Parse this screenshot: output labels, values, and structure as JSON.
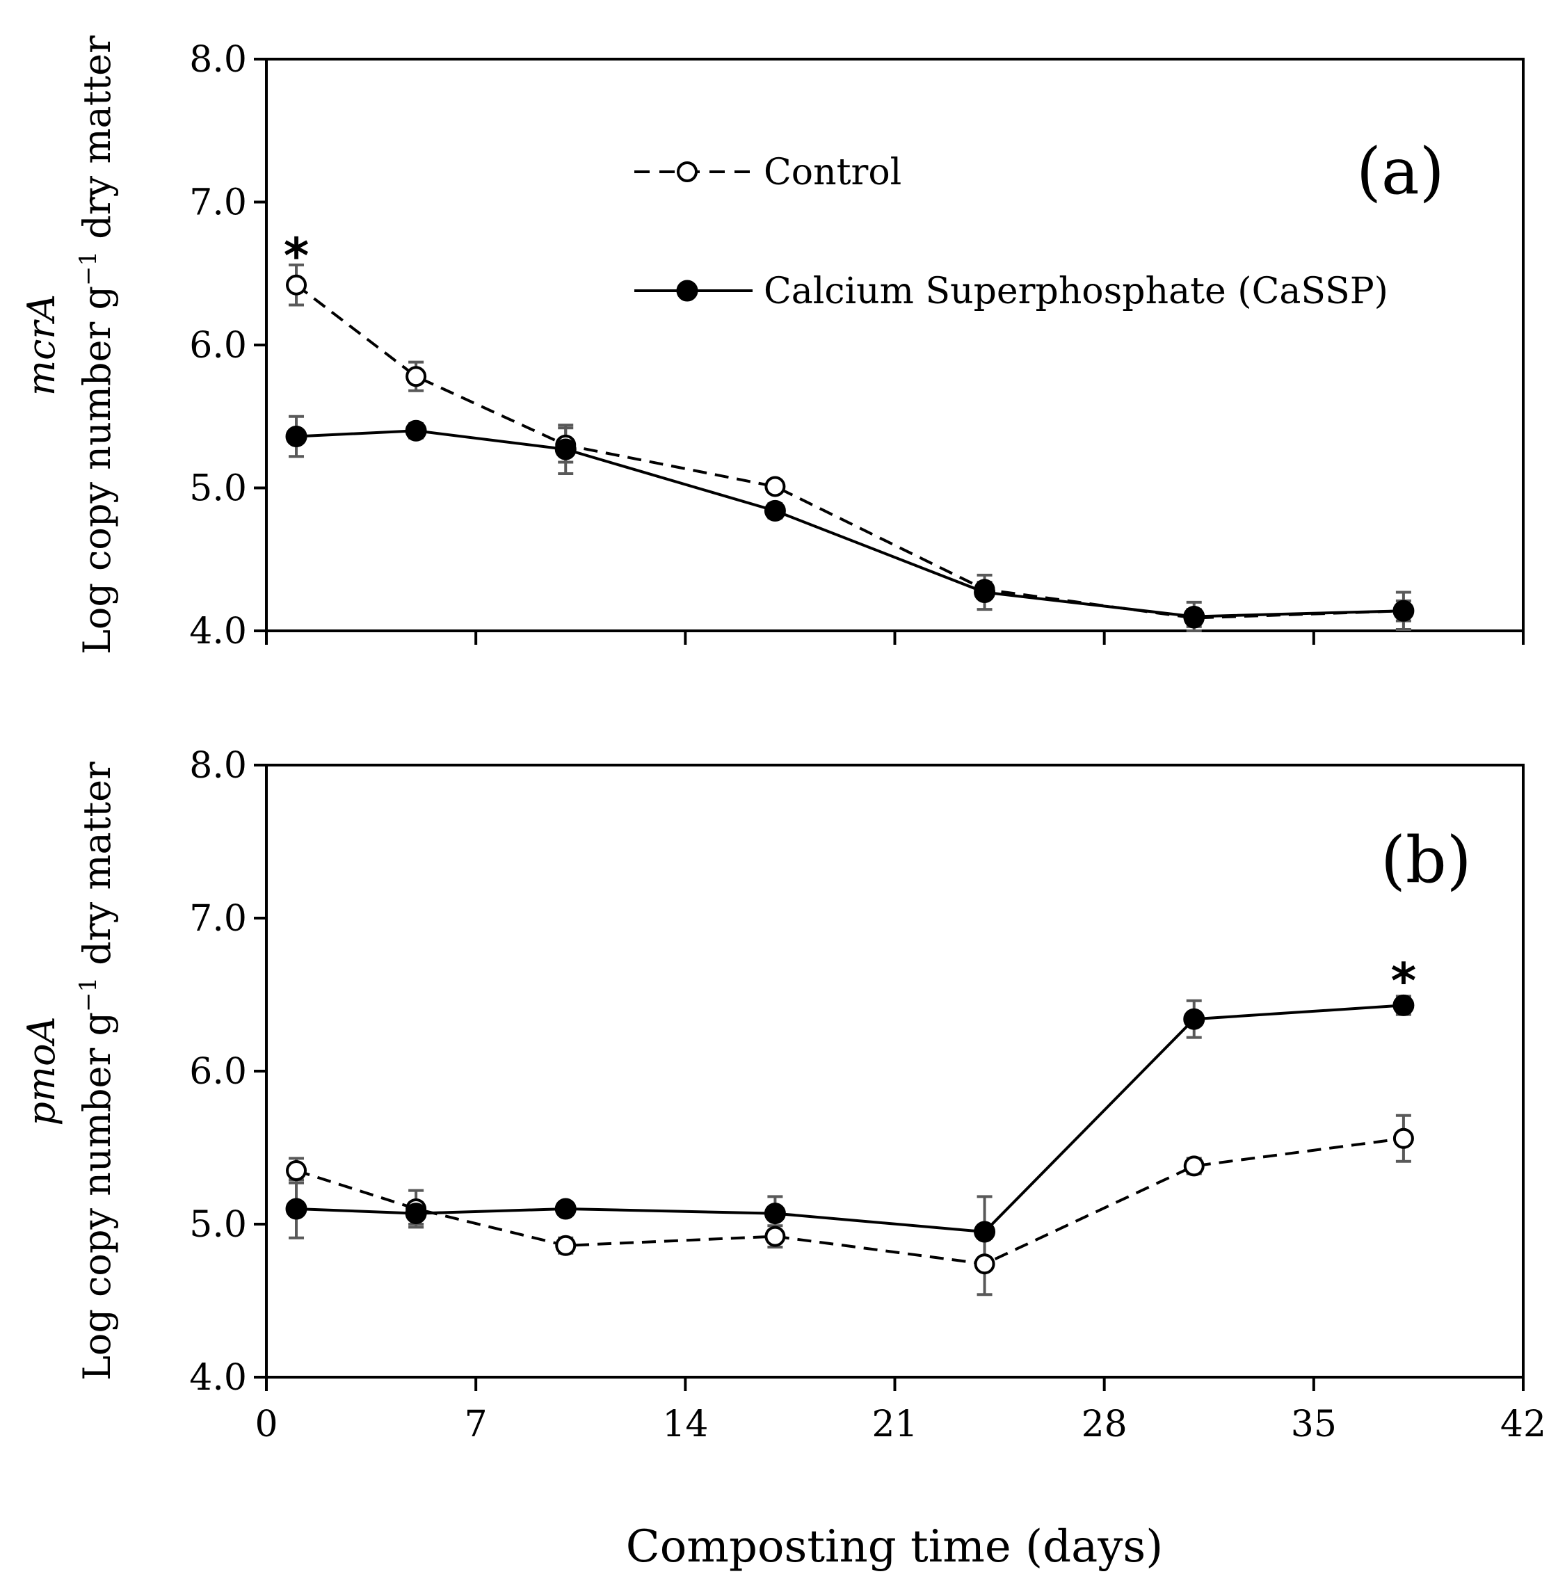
{
  "chart_data": [
    {
      "type": "line",
      "panel": "(a)",
      "gene": "mcrA",
      "ylabel_rest": "Log copy number g",
      "ylabel_sup": "−1",
      "ylabel_end": " dry matter",
      "ylim": [
        4.0,
        8.0
      ],
      "yticks": [
        "4.0",
        "5.0",
        "6.0",
        "7.0",
        "8.0"
      ],
      "xlim": [
        0,
        42
      ],
      "x": [
        1,
        5,
        10,
        17,
        24,
        31,
        38
      ],
      "series": [
        {
          "name": "Control",
          "style": "dashed",
          "marker": "open-circle",
          "values": [
            6.42,
            5.78,
            5.3,
            5.01,
            4.29,
            4.09,
            4.14
          ],
          "errors": [
            0.14,
            0.1,
            0.12,
            0.04,
            0.05,
            0.06,
            0.13
          ]
        },
        {
          "name": "Calcium Superphosphate  (CaSSP)",
          "style": "solid",
          "marker": "filled-circle",
          "values": [
            5.36,
            5.4,
            5.27,
            4.84,
            4.27,
            4.1,
            4.14
          ],
          "errors": [
            0.14,
            0.05,
            0.17,
            0.05,
            0.12,
            0.1,
            0.07
          ]
        }
      ],
      "annotations": [
        {
          "text": "*",
          "x": 1,
          "y": 6.72
        }
      ]
    },
    {
      "type": "line",
      "panel": "(b)",
      "gene": "pmoA",
      "ylabel_rest": "Log copy number g",
      "ylabel_sup": "−1",
      "ylabel_end": " dry matter",
      "ylim": [
        4.0,
        8.0
      ],
      "yticks": [
        "4.0",
        "5.0",
        "6.0",
        "7.0",
        "8.0"
      ],
      "xlim": [
        0,
        42
      ],
      "xticks": [
        "0",
        "7",
        "14",
        "21",
        "28",
        "35",
        "42"
      ],
      "xlabel": "Composting time (days)",
      "x": [
        1,
        5,
        10,
        17,
        24,
        31,
        38
      ],
      "series": [
        {
          "name": "Control",
          "style": "dashed",
          "marker": "open-circle",
          "values": [
            5.35,
            5.1,
            4.86,
            4.92,
            4.74,
            5.38,
            5.56
          ],
          "errors": [
            0.08,
            0.12,
            0.05,
            0.07,
            0.2,
            0.05,
            0.15
          ]
        },
        {
          "name": "Calcium Superphosphate  (CaSSP)",
          "style": "solid",
          "marker": "filled-circle",
          "values": [
            5.1,
            5.07,
            5.1,
            5.07,
            4.95,
            6.34,
            6.43
          ],
          "errors": [
            0.19,
            0.07,
            0.03,
            0.11,
            0.23,
            0.12,
            0.06
          ]
        }
      ],
      "annotations": [
        {
          "text": "*",
          "x": 38,
          "y": 6.68
        }
      ]
    }
  ],
  "legend": {
    "control": "Control",
    "cassp": "Calcium Superphosphate  (CaSSP)"
  },
  "colors": {
    "line": "#000000",
    "error": "#595959",
    "open_fill": "#ffffff"
  }
}
